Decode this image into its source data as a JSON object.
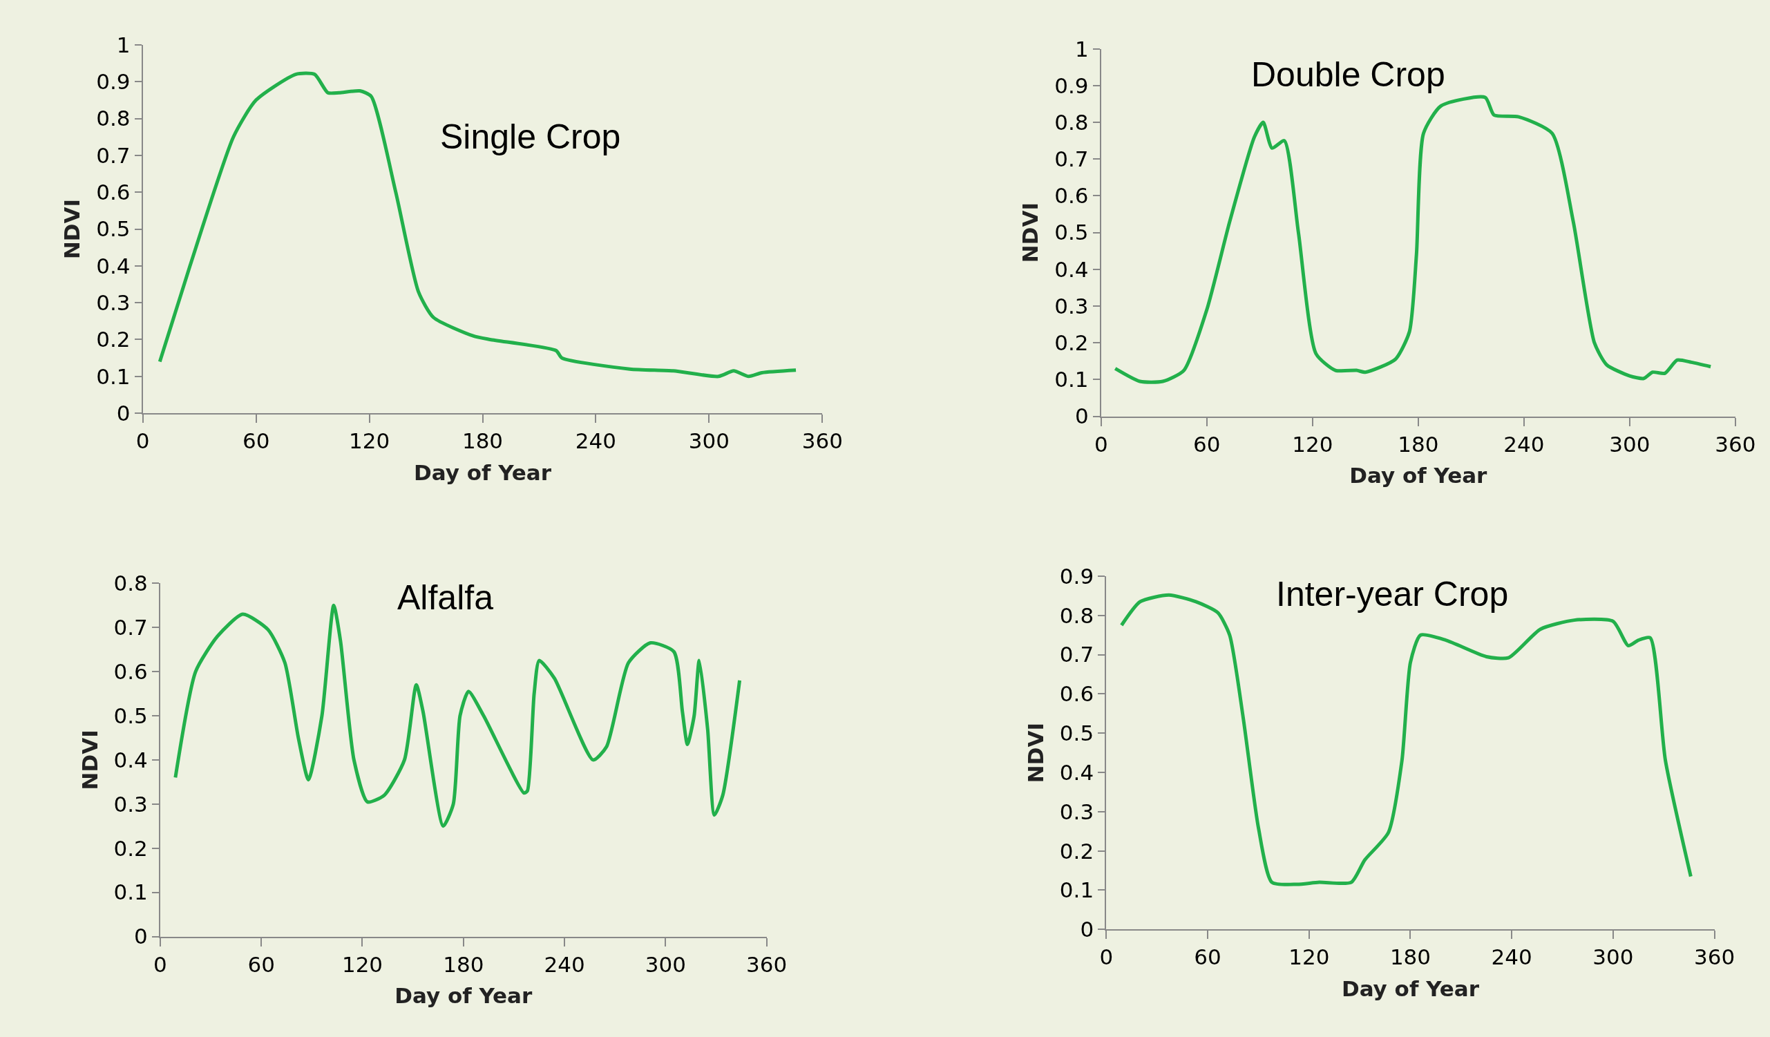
{
  "chart_data": [
    {
      "type": "line",
      "title": "Single Crop",
      "xlabel": "Day of Year",
      "ylabel": "NDVI",
      "xlim": [
        0,
        360
      ],
      "xticks": [
        0,
        60,
        120,
        180,
        240,
        300,
        360
      ],
      "ylim": [
        0,
        1
      ],
      "yticks": [
        0,
        0.1,
        0.2,
        0.3,
        0.4,
        0.5,
        0.6,
        0.7,
        0.8,
        0.9,
        1
      ],
      "marker": "none",
      "line_style": "solid",
      "series": [
        {
          "color": "#22b04b",
          "x": [
            9,
            25,
            48,
            60,
            81,
            91,
            98,
            104,
            115,
            121,
            134,
            146,
            154,
            175,
            184,
            219,
            222,
            258,
            281,
            305,
            313,
            321,
            328,
            346
          ],
          "values": [
            0.14,
            0.4,
            0.75,
            0.85,
            0.92,
            0.92,
            0.87,
            0.87,
            0.875,
            0.86,
            0.6,
            0.33,
            0.26,
            0.21,
            0.2,
            0.17,
            0.15,
            0.12,
            0.115,
            0.1,
            0.115,
            0.1,
            0.11,
            0.117
          ]
        }
      ]
    },
    {
      "type": "line",
      "title": "Double Crop",
      "xlabel": "Day of Year",
      "ylabel": "NDVI",
      "xlim": [
        0,
        360
      ],
      "xticks": [
        0,
        60,
        120,
        180,
        240,
        300,
        360
      ],
      "ylim": [
        0,
        1
      ],
      "yticks": [
        0,
        0.1,
        0.2,
        0.3,
        0.4,
        0.5,
        0.6,
        0.7,
        0.8,
        0.9,
        1
      ],
      "marker": "none",
      "line_style": "solid",
      "series": [
        {
          "color": "#22b04b",
          "x": [
            8,
            22,
            35,
            47,
            60,
            73,
            87,
            92,
            97,
            104,
            112,
            122,
            133,
            145,
            150,
            167,
            175,
            179,
            183,
            193,
            218,
            223,
            237,
            256,
            268,
            280,
            287,
            300,
            308,
            313,
            320,
            327,
            335,
            346
          ],
          "values": [
            0.13,
            0.095,
            0.095,
            0.125,
            0.29,
            0.53,
            0.76,
            0.8,
            0.73,
            0.75,
            0.5,
            0.17,
            0.125,
            0.125,
            0.12,
            0.155,
            0.23,
            0.44,
            0.77,
            0.845,
            0.868,
            0.82,
            0.815,
            0.77,
            0.53,
            0.2,
            0.14,
            0.11,
            0.103,
            0.12,
            0.117,
            0.153,
            0.147,
            0.135
          ]
        }
      ]
    },
    {
      "type": "line",
      "title": "Alfalfa",
      "xlabel": "Day of Year",
      "ylabel": "NDVI",
      "xlim": [
        0,
        360
      ],
      "xticks": [
        0,
        60,
        120,
        180,
        240,
        300,
        360
      ],
      "ylim": [
        0,
        0.8
      ],
      "yticks": [
        0,
        0.1,
        0.2,
        0.3,
        0.4,
        0.5,
        0.6,
        0.7,
        0.8
      ],
      "marker": "none",
      "line_style": "solid",
      "series": [
        {
          "color": "#22b04b",
          "x": [
            9,
            21,
            34,
            49,
            64,
            74,
            82,
            88,
            96,
            103,
            107,
            115,
            123,
            133,
            145,
            152,
            156,
            168,
            174,
            178,
            183,
            192,
            216,
            218,
            222,
            225,
            234,
            257,
            265,
            278,
            291,
            305,
            310,
            313,
            317,
            320,
            325,
            329,
            334,
            344
          ],
          "values": [
            0.36,
            0.6,
            0.68,
            0.73,
            0.695,
            0.62,
            0.45,
            0.355,
            0.5,
            0.75,
            0.67,
            0.4,
            0.305,
            0.32,
            0.4,
            0.57,
            0.51,
            0.25,
            0.3,
            0.5,
            0.555,
            0.5,
            0.325,
            0.33,
            0.55,
            0.625,
            0.585,
            0.4,
            0.43,
            0.62,
            0.665,
            0.645,
            0.51,
            0.435,
            0.5,
            0.625,
            0.47,
            0.275,
            0.32,
            0.58
          ]
        }
      ]
    },
    {
      "type": "line",
      "title": "Inter-year Crop",
      "xlabel": "Day of Year",
      "ylabel": "NDVI",
      "xlim": [
        0,
        360
      ],
      "xticks": [
        0,
        60,
        120,
        180,
        240,
        300,
        360
      ],
      "ylim": [
        0,
        0.9
      ],
      "yticks": [
        0,
        0.1,
        0.2,
        0.3,
        0.4,
        0.5,
        0.6,
        0.7,
        0.8,
        0.9
      ],
      "marker": "none",
      "line_style": "solid",
      "series": [
        {
          "color": "#22b04b",
          "x": [
            9,
            20,
            37,
            53,
            66,
            73,
            81,
            90,
            98,
            113,
            126,
            145,
            153,
            167,
            175,
            180,
            186,
            201,
            225,
            238,
            257,
            277,
            300,
            309,
            315,
            322,
            331,
            346
          ],
          "values": [
            0.775,
            0.835,
            0.852,
            0.835,
            0.807,
            0.75,
            0.54,
            0.26,
            0.12,
            0.115,
            0.12,
            0.12,
            0.177,
            0.247,
            0.43,
            0.68,
            0.75,
            0.737,
            0.695,
            0.692,
            0.765,
            0.788,
            0.785,
            0.723,
            0.737,
            0.743,
            0.43,
            0.135
          ]
        }
      ]
    }
  ]
}
